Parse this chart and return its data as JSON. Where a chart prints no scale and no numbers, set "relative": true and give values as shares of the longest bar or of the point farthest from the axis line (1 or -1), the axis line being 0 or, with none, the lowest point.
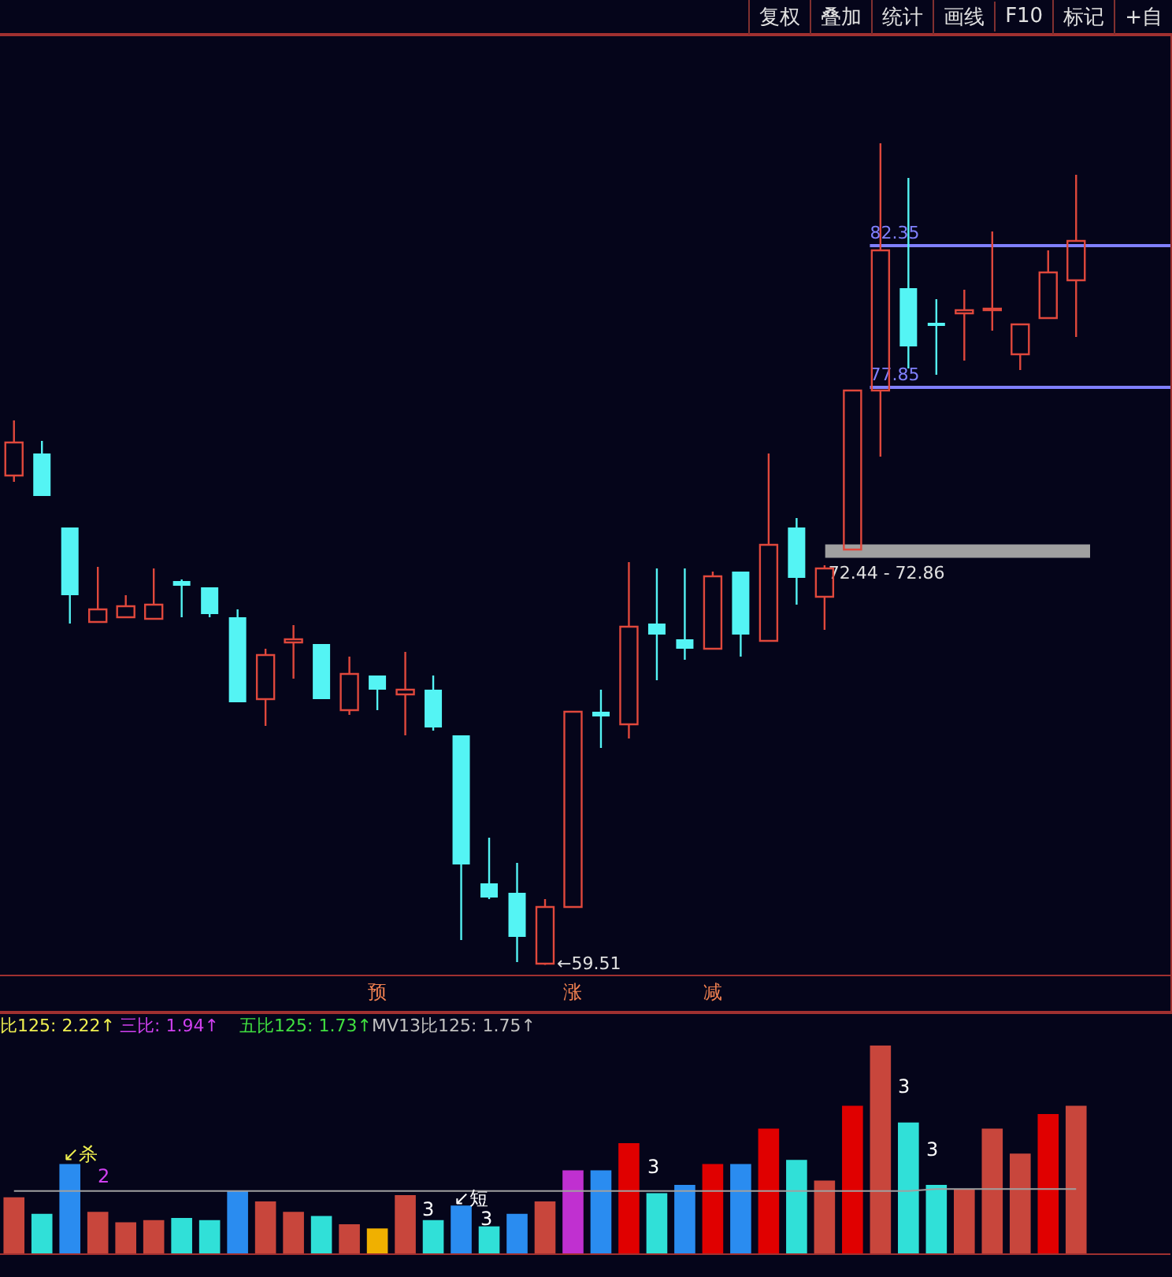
{
  "chart_data": [
    {
      "type": "other",
      "annotations": [
        "复权",
        "叠加",
        "统计",
        "画线",
        "F10",
        "标记",
        "+自"
      ]
    },
    {
      "type": "candlestick",
      "categories": [
        null,
        null,
        null,
        null,
        null,
        null,
        null,
        null,
        null,
        null,
        null,
        null,
        null,
        "预",
        null,
        null,
        null,
        null,
        null,
        null,
        "涨",
        null,
        null,
        null,
        null,
        "减",
        null,
        null,
        null,
        null,
        null,
        null,
        null,
        null,
        null,
        null,
        null,
        null,
        null
      ],
      "ohlc": [
        [
          75.05,
          76.8,
          74.85,
          76.1
        ],
        [
          75.75,
          76.15,
          74.4,
          74.4
        ],
        [
          73.4,
          73.4,
          70.35,
          71.25
        ],
        [
          70.4,
          72.15,
          70.4,
          70.8
        ],
        [
          70.55,
          71.25,
          70.55,
          70.9
        ],
        [
          70.5,
          72.1,
          70.5,
          70.95
        ],
        [
          71.7,
          71.75,
          70.55,
          71.55
        ],
        [
          71.5,
          71.5,
          70.55,
          70.65
        ],
        [
          70.55,
          70.8,
          67.85,
          67.85
        ],
        [
          67.95,
          69.55,
          67.1,
          69.35
        ],
        [
          69.75,
          70.3,
          68.6,
          69.85
        ],
        [
          69.7,
          69.7,
          67.95,
          67.95
        ],
        [
          67.6,
          69.3,
          67.45,
          68.75
        ],
        [
          68.7,
          68.7,
          67.6,
          68.25
        ],
        [
          68.1,
          69.45,
          66.8,
          68.25
        ],
        [
          68.25,
          68.7,
          66.95,
          67.05
        ],
        [
          66.8,
          66.8,
          60.3,
          62.7
        ],
        [
          62.1,
          63.55,
          61.6,
          61.65
        ],
        [
          61.8,
          62.75,
          59.6,
          60.4
        ],
        [
          59.55,
          61.6,
          59.51,
          61.35
        ],
        [
          61.35,
          67.55,
          61.35,
          67.55
        ],
        [
          67.55,
          68.25,
          66.4,
          67.4
        ],
        [
          67.15,
          72.3,
          66.7,
          70.25
        ],
        [
          70.35,
          72.1,
          68.55,
          70.0
        ],
        [
          69.85,
          72.1,
          69.2,
          69.55
        ],
        [
          69.55,
          72.0,
          69.55,
          71.85
        ],
        [
          72.0,
          72.0,
          69.3,
          70.0
        ],
        [
          69.8,
          75.75,
          69.8,
          72.85
        ],
        [
          73.4,
          73.7,
          70.95,
          71.8
        ],
        [
          71.2,
          72.2,
          70.15,
          72.1
        ],
        [
          72.7,
          77.75,
          72.7,
          77.75
        ],
        [
          77.75,
          85.6,
          75.65,
          82.2
        ],
        [
          81.0,
          84.5,
          78.45,
          79.15
        ],
        [
          79.9,
          80.65,
          78.25,
          79.85
        ],
        [
          80.2,
          80.95,
          78.7,
          80.3
        ],
        [
          80.3,
          82.8,
          79.65,
          80.35
        ],
        [
          78.9,
          79.85,
          78.4,
          79.85
        ],
        [
          80.05,
          82.2,
          80.05,
          81.5
        ],
        [
          81.25,
          84.6,
          79.45,
          82.5
        ]
      ],
      "colors": [
        "#e0483c",
        "#54f4f4",
        "#54f4f4",
        "#e0483c",
        "#e0483c",
        "#e0483c",
        "#54f4f4",
        "#54f4f4",
        "#54f4f4",
        "#e0483c",
        "#e0483c",
        "#54f4f4",
        "#e0483c",
        "#54f4f4",
        "#e0483c",
        "#54f4f4",
        "#54f4f4",
        "#54f4f4",
        "#54f4f4",
        "#e0483c",
        "#e0483c",
        "#54f4f4",
        "#e0483c",
        "#54f4f4",
        "#54f4f4",
        "#e0483c",
        "#54f4f4",
        "#e0483c",
        "#54f4f4",
        "#e0483c",
        "#e0483c",
        "#e0483c",
        "#54f4f4",
        "#54f4f4",
        "#e0483c",
        "#e0483c",
        "#e0483c",
        "#e0483c",
        "#e0483c"
      ],
      "ylim": [
        59.15,
        89.05
      ],
      "tick_labels": "x",
      "ref_lines": [
        {
          "axis": "y",
          "value": 82.35,
          "label": "82.35",
          "color": "#8080ff"
        },
        {
          "axis": "y",
          "value": 77.85,
          "label": "77.85",
          "color": "#8080ff"
        }
      ],
      "bands": [
        {
          "axis": "y",
          "from": 72.44,
          "to": 72.86,
          "label": "72.44 - 72.86",
          "color": "#a0a0a0"
        }
      ],
      "annotations": [
        "←59.51"
      ]
    },
    {
      "type": "bar",
      "relative": true,
      "categories": [
        null,
        null,
        null,
        null,
        null,
        null,
        null,
        null,
        null,
        null,
        null,
        null,
        null,
        null,
        null,
        null,
        null,
        null,
        null,
        null,
        null,
        null,
        null,
        null,
        null,
        null,
        null,
        null,
        null,
        null,
        null,
        null,
        null,
        null,
        null,
        null,
        null,
        null,
        null
      ],
      "series": [
        {
          "type": "bar",
          "values": [
            0.27,
            0.19,
            0.43,
            0.2,
            0.15,
            0.16,
            0.17,
            0.16,
            0.3,
            0.25,
            0.2,
            0.18,
            0.14,
            0.12,
            0.28,
            0.16,
            0.23,
            0.13,
            0.19,
            0.25,
            0.4,
            0.4,
            0.53,
            0.29,
            0.33,
            0.43,
            0.43,
            0.6,
            0.45,
            0.35,
            0.71,
            1,
            0.63,
            0.33,
            0.31,
            0.6,
            0.48,
            0.67,
            0.71
          ],
          "colors": [
            "#c8463c",
            "#30e0d8",
            "#2a8cf0",
            "#c8463c",
            "#c8463c",
            "#c8463c",
            "#30e0d8",
            "#30e0d8",
            "#2a8cf0",
            "#c8463c",
            "#c8463c",
            "#30e0d8",
            "#c8463c",
            "#f0b000",
            "#c8463c",
            "#30e0d8",
            "#2a8cf0",
            "#30e0d8",
            "#2a8cf0",
            "#c8463c",
            "#c030d0",
            "#2a8cf0",
            "#e00000",
            "#30e0d8",
            "#2a8cf0",
            "#e00000",
            "#2a8cf0",
            "#e00000",
            "#30e0d8",
            "#c8463c",
            "#e00000",
            "#c8463c",
            "#30e0d8",
            "#30e0d8",
            "#c8463c",
            "#c8463c",
            "#c8463c",
            "#e00000",
            "#c8463c"
          ]
        },
        {
          "type": "line",
          "color": "#a0a0a0",
          "values": [
            0.3,
            0.3,
            0.3,
            0.3,
            0.3,
            0.3,
            0.3,
            0.3,
            0.3,
            0.3,
            0.3,
            0.3,
            0.3,
            0.3,
            0.3,
            0.3,
            0.3,
            0.3,
            0.3,
            0.3,
            0.3,
            0.3,
            0.3,
            0.3,
            0.3,
            0.3,
            0.3,
            0.3,
            0.3,
            0.3,
            0.3,
            0.3,
            0.3,
            0.31,
            0.31,
            0.31,
            0.31,
            0.31,
            0.31
          ]
        }
      ],
      "annotations": [
        "比125: 2.22↑",
        "三比: 1.94↑",
        "五比125: 1.73↑",
        "MV13比125: 1.75↑",
        "↙杀",
        "2",
        "3",
        "↙短",
        "3",
        "3",
        "3",
        "3"
      ]
    }
  ]
}
